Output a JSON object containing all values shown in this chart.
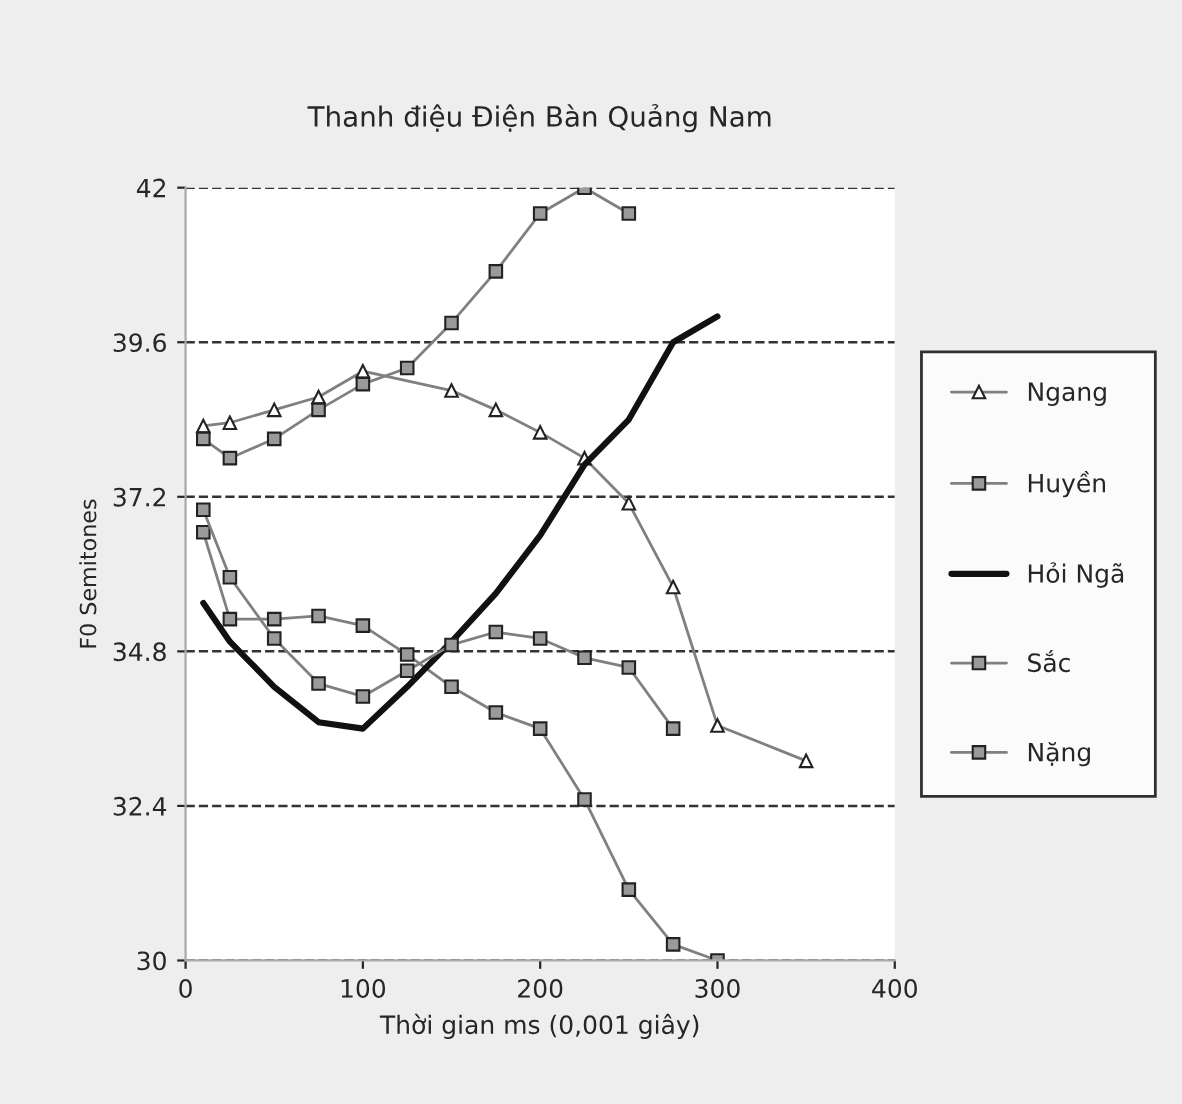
{
  "chart_data": {
    "type": "line",
    "title": "Thanh điệu Điện Bàn Quảng Nam",
    "xlabel": "Thời gian ms (0,001 giây)",
    "ylabel": "F0 Semitones",
    "xlim": [
      0,
      400
    ],
    "xticks": [
      0,
      100,
      200,
      300,
      400
    ],
    "ylim": [
      30,
      42
    ],
    "yticks": [
      30,
      32.4,
      34.8,
      37.2,
      39.6,
      42
    ],
    "grid": "y",
    "legend": "right",
    "series": [
      {
        "name": "Ngang",
        "color": "#808080",
        "marker": "triangle",
        "x": [
          10,
          25,
          50,
          75,
          100,
          125,
          150,
          175,
          200,
          225,
          250,
          275,
          300,
          350
        ],
        "values": [
          38.3,
          38.35,
          38.55,
          38.75,
          39.15,
          null,
          38.85,
          38.55,
          38.2,
          37.8,
          37.1,
          35.8,
          33.65,
          33.1
        ]
      },
      {
        "name": "Huyền",
        "color": "#808080",
        "marker": "square",
        "x": [
          10,
          25,
          50,
          75,
          100,
          125,
          150,
          175,
          200,
          225,
          250,
          275,
          300
        ],
        "values": [
          36.65,
          35.3,
          35.3,
          35.35,
          35.2,
          34.75,
          34.25,
          33.85,
          33.6,
          32.5,
          31.1,
          30.25,
          30.0
        ]
      },
      {
        "name": "Hỏi Ngã",
        "color": "#111111",
        "marker": "none",
        "x": [
          10,
          25,
          50,
          75,
          100,
          125,
          150,
          175,
          200,
          225,
          250,
          275,
          300
        ],
        "values": [
          35.55,
          34.95,
          34.25,
          33.7,
          33.6,
          34.25,
          34.95,
          35.7,
          36.6,
          37.7,
          38.4,
          39.6,
          40.0
        ]
      },
      {
        "name": "Sắc",
        "color": "#808080",
        "marker": "square",
        "x": [
          10,
          25,
          50,
          75,
          100,
          125,
          150,
          175,
          200,
          225,
          250
        ],
        "values": [
          38.1,
          37.8,
          38.1,
          38.55,
          38.95,
          39.2,
          39.9,
          40.7,
          41.6,
          42.0,
          41.6
        ]
      },
      {
        "name": "Nặng",
        "color": "#808080",
        "marker": "square",
        "x": [
          10,
          25,
          50,
          75,
          100,
          125,
          150,
          175,
          200,
          225,
          250,
          275
        ],
        "values": [
          37.0,
          35.95,
          35.0,
          34.3,
          34.1,
          34.5,
          34.9,
          35.1,
          35.0,
          34.7,
          34.55,
          33.6
        ]
      }
    ]
  }
}
